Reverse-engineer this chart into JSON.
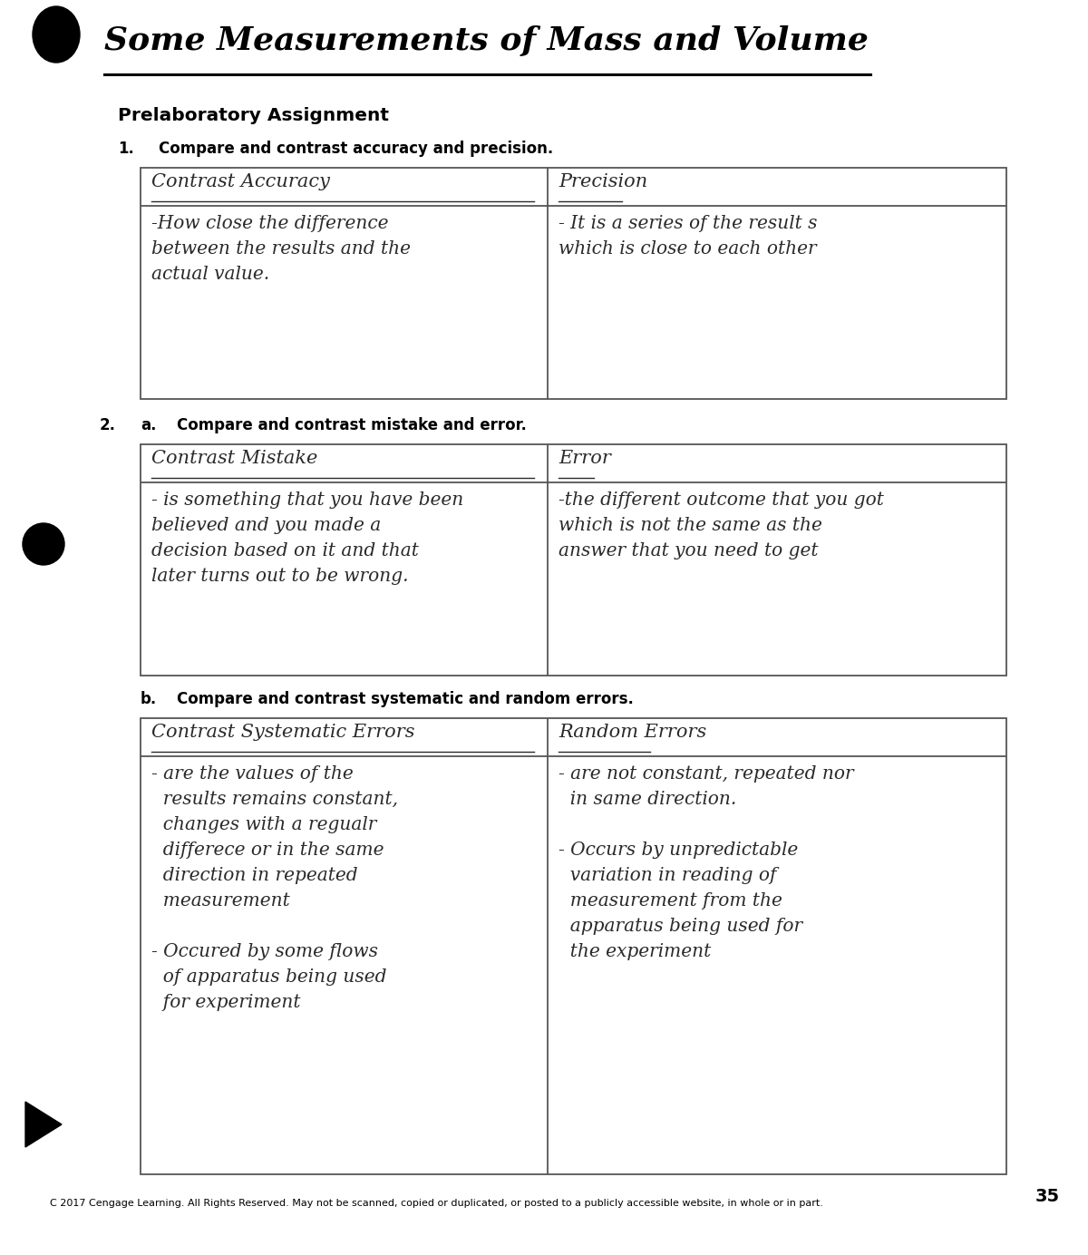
{
  "title": "Some Measurements of Mass and Volume",
  "prelab_header": "Prelaboratory Assignment",
  "q1_label": "1.",
  "q1_text": "Compare and contrast accuracy and precision.",
  "q2_label": "2.",
  "q2a_label": "a.",
  "q2a_text": "Compare and contrast mistake and error.",
  "q2b_label": "b.",
  "q2b_text": "Compare and contrast systematic and random errors.",
  "table1_col1_header": "Contrast Accuracy",
  "table1_col2_header": "Precision",
  "table1_col1_lines": [
    "-How close the difference",
    "between the results and the",
    "actual value."
  ],
  "table1_col2_lines": [
    "- It is a series of the result s",
    "which is close to each other"
  ],
  "table2_col1_header": "Contrast Mistake",
  "table2_col2_header": "Error",
  "table2_col1_lines": [
    "- is something that you have been",
    "believed and you made a",
    "decision based on it and that",
    "later turns out to be wrong."
  ],
  "table2_col2_lines": [
    "-the different outcome that you got",
    "which is not the same as the",
    "answer that you need to get"
  ],
  "table3_col1_header": "Contrast Systematic Errors",
  "table3_col2_header": "Random Errors",
  "table3_col1_lines": [
    "- are the values of the",
    "  results remains constant,",
    "  changes with a regualr",
    "  differece or in the same",
    "  direction in repeated",
    "  measurement",
    "",
    "- Occured by some flows",
    "  of apparatus being used",
    "  for experiment"
  ],
  "table3_col2_lines": [
    "- are not constant, repeated nor",
    "  in same direction.",
    "",
    "- Occurs by unpredictable",
    "  variation in reading of",
    "  measurement from the",
    "  apparatus being used for",
    "  the experiment"
  ],
  "footer": "C 2017 Cengage Learning. All Rights Reserved. May not be scanned, copied or duplicated, or posted to a publicly accessible website, in whole or in part.",
  "page_number": "35",
  "bg_color": "#ffffff",
  "text_color": "#000000",
  "hw_color": "#2a2a2a",
  "line_color": "#555555",
  "title_color": "#000000"
}
